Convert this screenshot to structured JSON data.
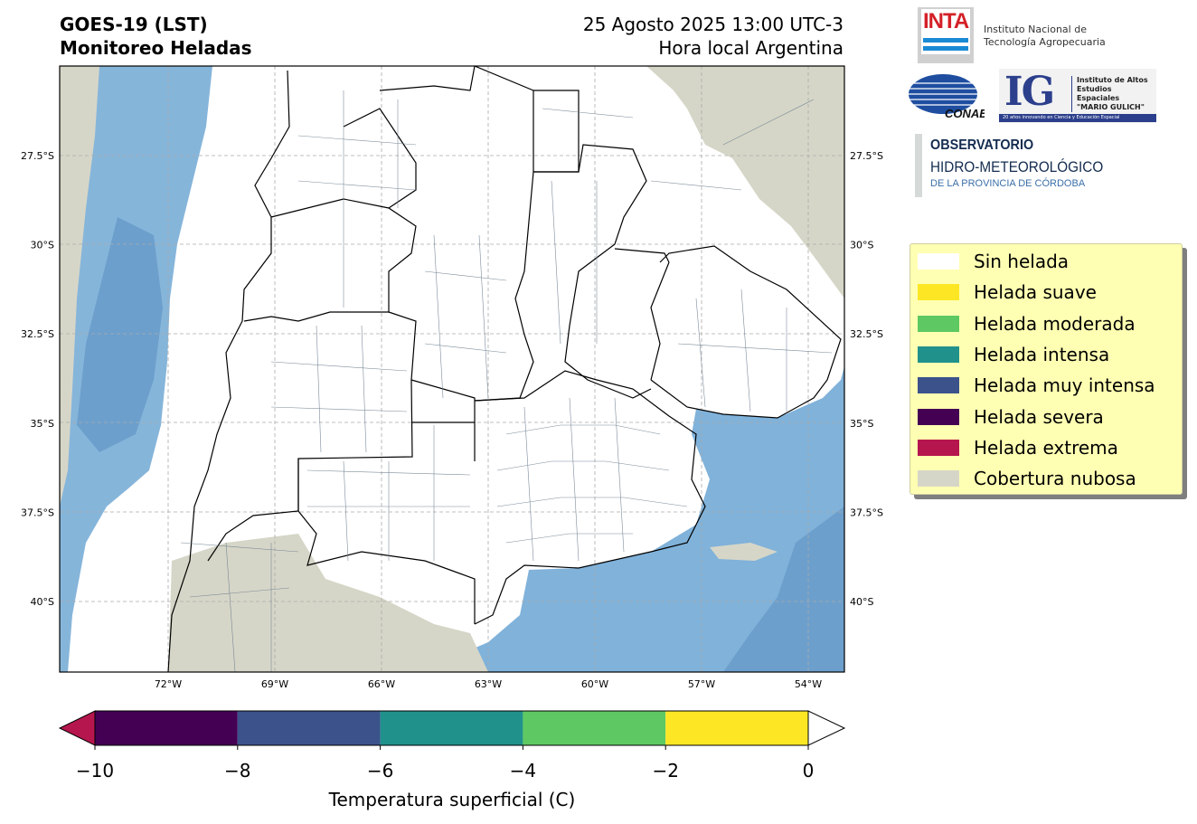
{
  "header": {
    "title_line1": "GOES-19 (LST)",
    "title_line2": "Monitoreo Heladas",
    "datetime": "25 Agosto 2025 13:00 UTC-3",
    "timezone_label": "Hora local Argentina"
  },
  "logos": {
    "inta_word": "INTA",
    "inta_line1": "Instituto Nacional de",
    "inta_line2": "Tecnología Agropecuaria",
    "conae": "CONAE",
    "ig": "IG",
    "ig_line1": "Instituto de Altos",
    "ig_line2": "Estudios Espaciales",
    "ig_line3": "\"MARIO GULICH\"",
    "ig_bar": "20 años innovando en Ciencia y Educación Espacial",
    "obs_line1": "OBSERVATORIO",
    "obs_line2": "HIDRO-METEOROLÓGICO",
    "obs_line3": "DE LA PROVINCIA DE CÓRDOBA"
  },
  "map": {
    "lat_ticks": [
      {
        "value": -27.5,
        "label": "27.5°S"
      },
      {
        "value": -30,
        "label": "30°S"
      },
      {
        "value": -32.5,
        "label": "32.5°S"
      },
      {
        "value": -35,
        "label": "35°S"
      },
      {
        "value": -37.5,
        "label": "37.5°S"
      },
      {
        "value": -40,
        "label": "40°S"
      }
    ],
    "lon_ticks": [
      {
        "value": -72,
        "label": "72°W"
      },
      {
        "value": -69,
        "label": "69°W"
      },
      {
        "value": -66,
        "label": "66°W"
      },
      {
        "value": -63,
        "label": "63°W"
      },
      {
        "value": -60,
        "label": "60°W"
      },
      {
        "value": -57,
        "label": "57°W"
      },
      {
        "value": -54,
        "label": "54°W"
      }
    ],
    "colors": {
      "cloud": "#d6d6c8",
      "sea": "#7fb0d8",
      "sea_dark": "#6a9fcc",
      "land": "#ffffff",
      "admin_line": "#6e8090",
      "province_line": "#000000"
    }
  },
  "legend": {
    "items": [
      {
        "label": "Sin helada",
        "color": "#ffffff"
      },
      {
        "label": "Helada suave",
        "color": "#fde725"
      },
      {
        "label": "Helada moderada",
        "color": "#5ec962"
      },
      {
        "label": "Helada intensa",
        "color": "#21918c"
      },
      {
        "label": "Helada muy intensa",
        "color": "#3b528b"
      },
      {
        "label": "Helada severa",
        "color": "#440154"
      },
      {
        "label": "Helada extrema",
        "color": "#b5164e"
      },
      {
        "label": "Cobertura nubosa",
        "color": "#d6d6c8"
      }
    ]
  },
  "colorbar": {
    "label": "Temperatura superficial (C)",
    "ticks": [
      "−10",
      "−8",
      "−6",
      "−4",
      "−2",
      "0"
    ],
    "segments": [
      "#440154",
      "#3b528b",
      "#21918c",
      "#5ec962",
      "#fde725"
    ],
    "under_color": "#b5164e",
    "over_color": "#ffffff"
  }
}
